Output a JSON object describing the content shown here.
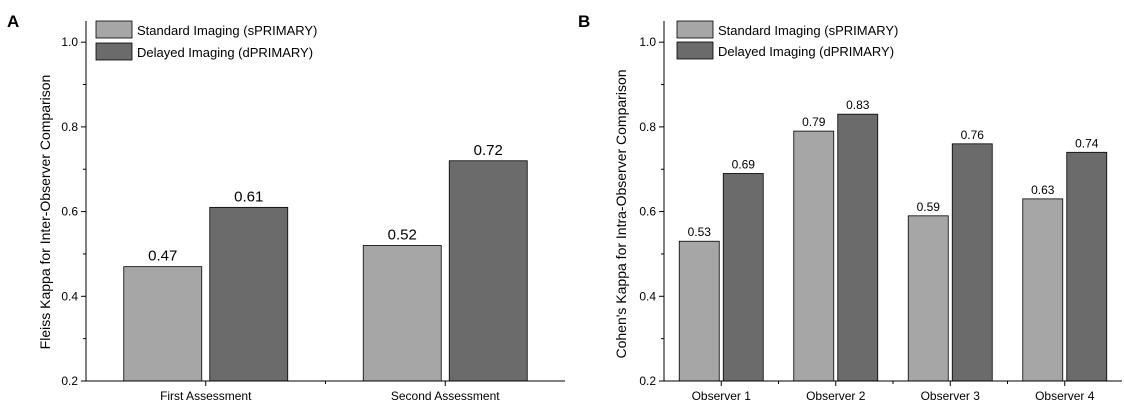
{
  "panels": {
    "a": {
      "letter": "A"
    },
    "b": {
      "letter": "B"
    }
  },
  "legend": {
    "items": [
      {
        "label": "Standard Imaging (sPRIMARY)",
        "color": "#a6a6a6"
      },
      {
        "label": "Delayed Imaging (dPRIMARY)",
        "color": "#6b6b6b"
      }
    ]
  },
  "chart_data": [
    {
      "type": "bar",
      "title": "",
      "xlabel": "",
      "ylabel": "Fleiss Kappa for Inter-Observer Comparison",
      "ylim": [
        0.2,
        1.05
      ],
      "yticks": [
        "0.2",
        "0.4",
        "0.6",
        "0.8",
        "1.0"
      ],
      "categories": [
        "First Assessment",
        "Second Assessment"
      ],
      "series": [
        {
          "name": "Standard Imaging (sPRIMARY)",
          "values": [
            0.47,
            0.52
          ],
          "labels": [
            "0.47",
            "0.52"
          ]
        },
        {
          "name": "Delayed Imaging (dPRIMARY)",
          "values": [
            0.61,
            0.72
          ],
          "labels": [
            "0.61",
            "0.72"
          ]
        }
      ],
      "grid": false,
      "legend_position": "top-left"
    },
    {
      "type": "bar",
      "title": "",
      "xlabel": "",
      "ylabel": "Cohen's Kappa for Intra-Observer Comparison",
      "ylim": [
        0.2,
        1.05
      ],
      "yticks": [
        "0.2",
        "0.4",
        "0.6",
        "0.8",
        "1.0"
      ],
      "categories": [
        "Observer 1",
        "Observer 2",
        "Observer 3",
        "Observer 4"
      ],
      "series": [
        {
          "name": "Standard Imaging (sPRIMARY)",
          "values": [
            0.53,
            0.79,
            0.59,
            0.63
          ],
          "labels": [
            "0.53",
            "0.79",
            "0.59",
            "0.63"
          ]
        },
        {
          "name": "Delayed Imaging (dPRIMARY)",
          "values": [
            0.69,
            0.83,
            0.76,
            0.74
          ],
          "labels": [
            "0.69",
            "0.83",
            "0.76",
            "0.74"
          ]
        }
      ],
      "grid": false,
      "legend_position": "top-left"
    }
  ]
}
